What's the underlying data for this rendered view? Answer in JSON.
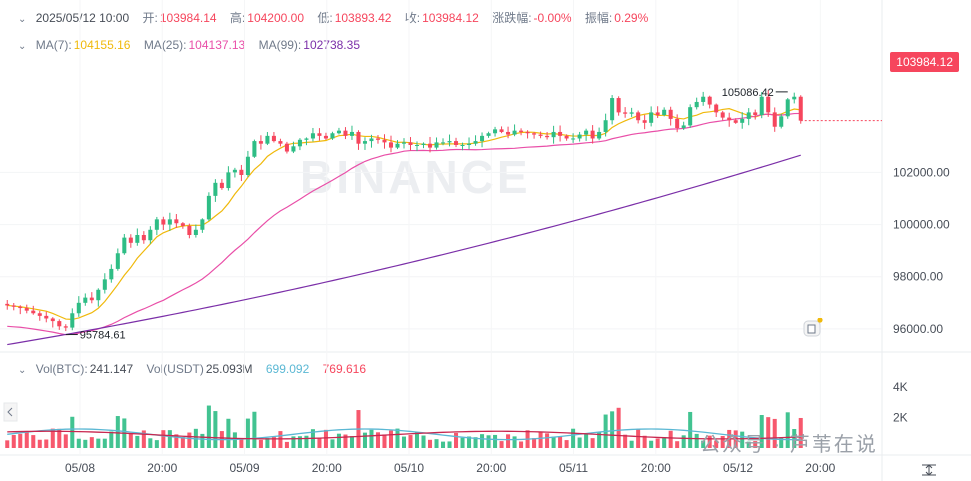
{
  "header": {
    "datetime": "2025/05/12 10:00",
    "open_label": "开:",
    "open": "103984.14",
    "high_label": "高:",
    "high": "104200.00",
    "low_label": "低:",
    "low": "103893.42",
    "close_label": "收:",
    "close": "103984.12",
    "change_label": "涨跌幅:",
    "change": "-0.00%",
    "amp_label": "振幅:",
    "amp": "0.29%"
  },
  "ma": {
    "ma7_label": "MA(7):",
    "ma7": "104155.16",
    "ma25_label": "MA(25):",
    "ma25": "104137.13",
    "ma99_label": "MA(99):",
    "ma99": "102738.35"
  },
  "vol": {
    "btc_label": "Vol(BTC):",
    "btc": "241.147",
    "usdt_label": "Vol(USDT)",
    "usdt": "25.093M",
    "v1": "699.092",
    "v2": "769.616"
  },
  "watermark": "BINANCE",
  "bottom_watermark": "公众号 · 芦苇在说",
  "current_price": "103984.12",
  "colors": {
    "up": "#2ebd85",
    "down": "#f6465d",
    "ma7": "#f0b90b",
    "ma25": "#e94fa8",
    "ma99": "#7b2fa8",
    "vol_ma1": "#5bb8d4",
    "vol_ma2": "#c8274f"
  },
  "chart_data": {
    "type": "candlestick",
    "interval": "1h",
    "y_ticks": [
      "102000.00",
      "100000.00",
      "98000.00",
      "96000.00"
    ],
    "y_range": [
      95000,
      106500
    ],
    "x_ticks": [
      "05/08",
      "20:00",
      "05/09",
      "20:00",
      "05/10",
      "20:00",
      "05/11",
      "20:00",
      "05/12",
      "20:00"
    ],
    "vol_ticks": [
      "4K",
      "2K"
    ],
    "vol_range": [
      0,
      4800
    ],
    "annotations": [
      {
        "label": "105086.42",
        "value": 105086.42
      },
      {
        "label": "95784.61",
        "value": 95784.61
      }
    ],
    "close": [
      96900,
      96850,
      96800,
      96700,
      96600,
      96500,
      96400,
      96300,
      96100,
      96050,
      96600,
      97000,
      97200,
      97100,
      97500,
      97900,
      98300,
      98900,
      99500,
      99300,
      99600,
      99400,
      99800,
      100200,
      100000,
      100200,
      100050,
      99950,
      99600,
      99800,
      100200,
      101100,
      101600,
      101400,
      102000,
      102100,
      101900,
      102600,
      103200,
      103100,
      103400,
      103200,
      103100,
      102800,
      103000,
      103250,
      103300,
      103500,
      103400,
      103300,
      103500,
      103600,
      103400,
      103550,
      103100,
      103200,
      103300,
      103250,
      103150,
      102950,
      103100,
      103150,
      103050,
      103050,
      103100,
      102950,
      103150,
      103150,
      103200,
      103050,
      103050,
      103100,
      103200,
      103400,
      103500,
      103650,
      103550,
      103450,
      103600,
      103550,
      103500,
      103450,
      103400,
      103350,
      103550,
      103400,
      103300,
      103300,
      103450,
      103600,
      103300,
      103550,
      104000,
      104850,
      104300,
      104250,
      104300,
      104000,
      103900,
      104300,
      104200,
      104400,
      104050,
      103700,
      103800,
      104500,
      104700,
      104900,
      104600,
      104300,
      104100,
      104000,
      103900,
      104050,
      104300,
      104200,
      104900,
      104300,
      103750,
      104150,
      104800,
      104900,
      103984
    ]
  }
}
